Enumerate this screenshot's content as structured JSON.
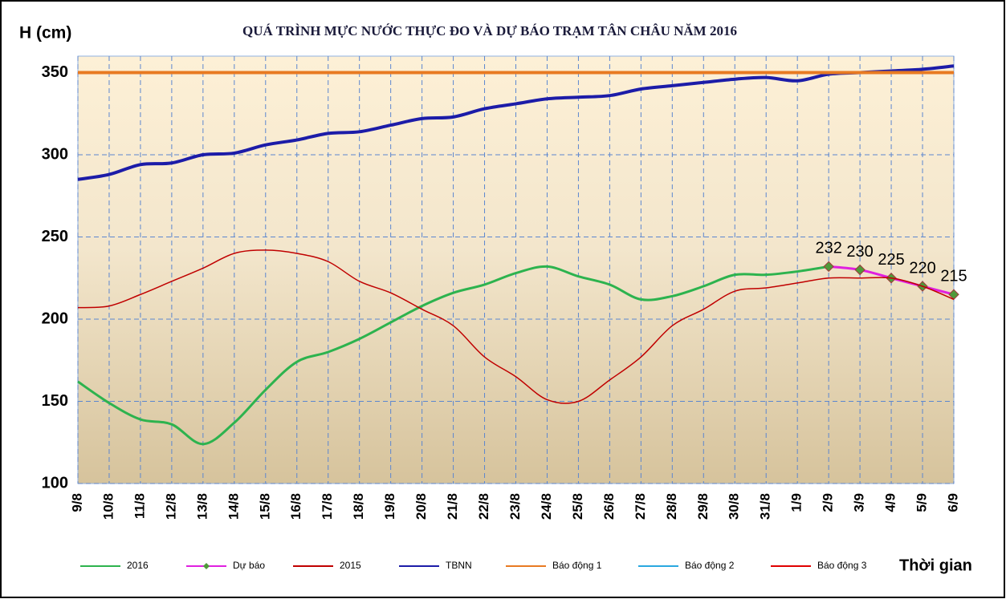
{
  "chart_data": {
    "type": "line",
    "title": "QUÁ TRÌNH MỰC NƯỚC THỰC ĐO VÀ DỰ BÁO TRẠM TÂN CHÂU NĂM 2016",
    "y_label": "H (cm)",
    "x_label": "Thời gian",
    "categories": [
      "9/8",
      "10/8",
      "11/8",
      "12/8",
      "13/8",
      "14/8",
      "15/8",
      "16/8",
      "17/8",
      "18/8",
      "19/8",
      "20/8",
      "21/8",
      "22/8",
      "23/8",
      "24/8",
      "25/8",
      "26/8",
      "27/8",
      "28/8",
      "29/8",
      "30/8",
      "31/8",
      "1/9",
      "2/9",
      "3/9",
      "4/9",
      "5/9",
      "6/9"
    ],
    "series": [
      {
        "name": "2016",
        "color": "#2db34e",
        "values": [
          162,
          149,
          139,
          136,
          124,
          137,
          157,
          174,
          180,
          188,
          198,
          208,
          216,
          221,
          228,
          232,
          226,
          221,
          212,
          214,
          220,
          227,
          227,
          229,
          232,
          null,
          null,
          null,
          null
        ]
      },
      {
        "name": "Dự báo",
        "color": "#e020e0",
        "marker_color": "#4f9a3a",
        "values": [
          null,
          null,
          null,
          null,
          null,
          null,
          null,
          null,
          null,
          null,
          null,
          null,
          null,
          null,
          null,
          null,
          null,
          null,
          null,
          null,
          null,
          null,
          null,
          null,
          232,
          230,
          225,
          220,
          215
        ],
        "data_labels": true
      },
      {
        "name": "2015",
        "color": "#c00000",
        "values": [
          207,
          208,
          215,
          223,
          231,
          240,
          242,
          240,
          235,
          223,
          216,
          206,
          196,
          177,
          165,
          151,
          150,
          163,
          177,
          196,
          206,
          217,
          219,
          222,
          225,
          225,
          225,
          220,
          212
        ]
      },
      {
        "name": "TBNN",
        "color": "#1c1ca8",
        "values": [
          285,
          288,
          294,
          295,
          300,
          301,
          306,
          309,
          313,
          314,
          318,
          322,
          323,
          328,
          331,
          334,
          335,
          336,
          340,
          342,
          344,
          346,
          347,
          345,
          349,
          350,
          351,
          352,
          354
        ]
      },
      {
        "name": "Báo động 1",
        "color": "#e87a22",
        "values": [
          350,
          350,
          350,
          350,
          350,
          350,
          350,
          350,
          350,
          350,
          350,
          350,
          350,
          350,
          350,
          350,
          350,
          350,
          350,
          350,
          350,
          350,
          350,
          350,
          350,
          350,
          350,
          350,
          350
        ]
      },
      {
        "name": "Báo động 2",
        "color": "#2aa8e0",
        "values": [
          null,
          null,
          null,
          null,
          null,
          null,
          null,
          null,
          null,
          null,
          null,
          null,
          null,
          null,
          null,
          null,
          null,
          null,
          null,
          null,
          null,
          null,
          null,
          null,
          null,
          null,
          null,
          null,
          null
        ]
      },
      {
        "name": "Báo động 3",
        "color": "#e00000",
        "values": [
          null,
          null,
          null,
          null,
          null,
          null,
          null,
          null,
          null,
          null,
          null,
          null,
          null,
          null,
          null,
          null,
          null,
          null,
          null,
          null,
          null,
          null,
          null,
          null,
          null,
          null,
          null,
          null,
          null
        ]
      }
    ],
    "ylim": [
      100,
      360
    ],
    "yticks": [
      100,
      150,
      200,
      250,
      300,
      350
    ],
    "grid": true,
    "legend": "bottom"
  }
}
